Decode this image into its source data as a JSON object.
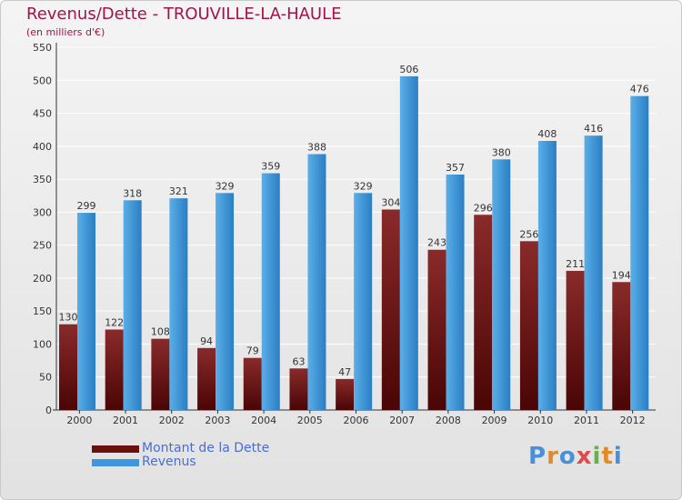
{
  "title": "Revenus/Dette - TROUVILLE-LA-HAULE",
  "subtitle": "(en milliers d'€)",
  "colors": {
    "title": "#a3124a",
    "dette_top": "#8a2a2a",
    "dette_bottom": "#4a0505",
    "revenus_top": "#5aaee8",
    "revenus_bottom": "#2b7ec2",
    "legend_text": "#4a6cd6"
  },
  "legend": {
    "items": [
      {
        "label": "Montant de la Dette",
        "color": "#6b0f0f"
      },
      {
        "label": "Revenus",
        "color": "#3e97dc"
      }
    ]
  },
  "logo": {
    "letters": [
      "P",
      "r",
      "o",
      "x",
      "i",
      "t",
      "i"
    ],
    "colors": [
      "#4a90d9",
      "#e08a2a",
      "#4a90d9",
      "#e04a4a",
      "#6ab04c",
      "#e08a2a",
      "#4a90d9"
    ]
  },
  "chart_data": {
    "type": "bar",
    "categories": [
      "2000",
      "2001",
      "2002",
      "2003",
      "2004",
      "2005",
      "2006",
      "2007",
      "2008",
      "2009",
      "2010",
      "2011",
      "2012"
    ],
    "series": [
      {
        "name": "Montant de la Dette",
        "values": [
          130,
          122,
          108,
          94,
          79,
          63,
          47,
          304,
          243,
          296,
          256,
          211,
          194
        ]
      },
      {
        "name": "Revenus",
        "values": [
          299,
          318,
          321,
          329,
          359,
          388,
          329,
          506,
          357,
          380,
          408,
          416,
          476
        ]
      }
    ],
    "yticks": [
      0,
      50,
      100,
      150,
      200,
      250,
      300,
      350,
      400,
      450,
      500,
      550
    ],
    "ylim": [
      0,
      550
    ],
    "grid": true,
    "legend_position": "bottom-left",
    "title": "Revenus/Dette - TROUVILLE-LA-HAULE",
    "ylabel": "(en milliers d'€)",
    "xlabel": ""
  }
}
